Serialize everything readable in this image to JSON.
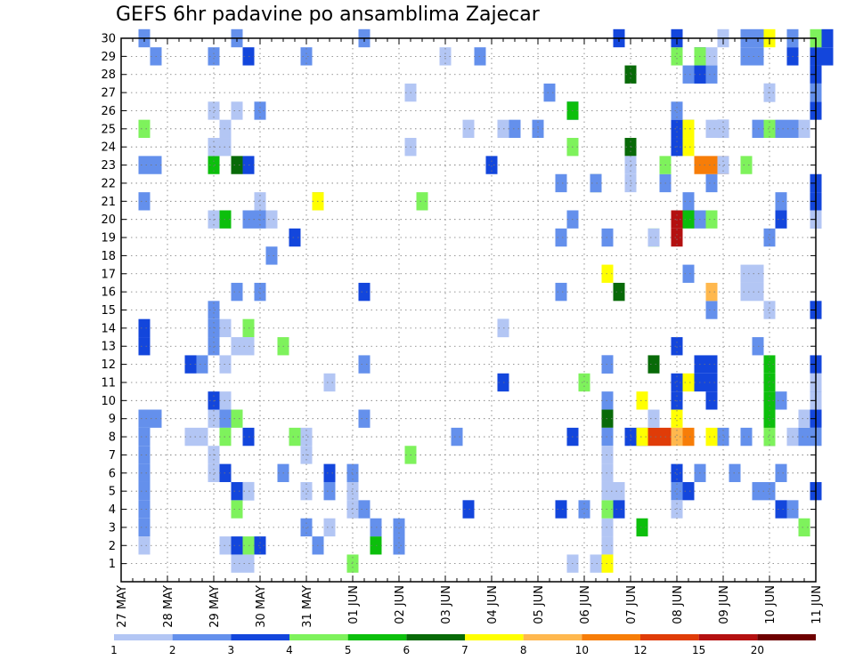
{
  "chart_data": {
    "type": "heatmap",
    "title": "GEFS 6hr padavine po ansamblima Zajecar",
    "xlabel": "",
    "ylabel": "",
    "x_tick_labels": [
      "27 MAY",
      "28 MAY",
      "29 MAY",
      "30 MAY",
      "31 MAY",
      "01 JUN",
      "02 JUN",
      "03 JUN",
      "04 JUN",
      "05 JUN",
      "06 JUN",
      "07 JUN",
      "08 JUN",
      "09 JUN",
      "10 JUN",
      "11 JUN"
    ],
    "y_tick_labels": [
      "1",
      "2",
      "3",
      "4",
      "5",
      "6",
      "7",
      "8",
      "9",
      "10",
      "11",
      "12",
      "13",
      "14",
      "15",
      "16",
      "17",
      "18",
      "19",
      "20",
      "21",
      "22",
      "23",
      "24",
      "25",
      "26",
      "27",
      "28",
      "29",
      "30"
    ],
    "members": 30,
    "steps_per_day": 4,
    "steps": 61,
    "grid": true,
    "legend": {
      "placement": "bottom",
      "labels": [
        "1",
        "2",
        "3",
        "4",
        "5",
        "6",
        "7",
        "8",
        "10",
        "12",
        "15",
        "20"
      ],
      "colors": [
        "#b3c6f4",
        "#6490ec",
        "#1346dc",
        "#7ef25c",
        "#0cbf0c",
        "#086a08",
        "#ffff00",
        "#ffb84e",
        "#f77d08",
        "#e03c08",
        "#b41010",
        "#6e0000"
      ]
    },
    "cells": [
      [
        2,
        30,
        1
      ],
      [
        3,
        29,
        1
      ],
      [
        6,
        12,
        2
      ],
      [
        7,
        12,
        1
      ],
      [
        8,
        29,
        1
      ],
      [
        10,
        30,
        1
      ],
      [
        10,
        4,
        3
      ],
      [
        11,
        29,
        2
      ],
      [
        11,
        8,
        2
      ],
      [
        11,
        5,
        2
      ],
      [
        11,
        14,
        3
      ],
      [
        12,
        26,
        1
      ],
      [
        13,
        18,
        1
      ],
      [
        14,
        6,
        1
      ],
      [
        14,
        13,
        3
      ],
      [
        15,
        19,
        2
      ],
      [
        15,
        8,
        3
      ],
      [
        16,
        3,
        1
      ],
      [
        17,
        2,
        1
      ],
      [
        20,
        1,
        3
      ],
      [
        21,
        9,
        1
      ],
      [
        21,
        4,
        1
      ],
      [
        21,
        12,
        1
      ],
      [
        21,
        16,
        2
      ],
      [
        22,
        2,
        4
      ],
      [
        22,
        3,
        1
      ],
      [
        24,
        2,
        1
      ],
      [
        25,
        7,
        3
      ],
      [
        26,
        21,
        3
      ],
      [
        29,
        8,
        1
      ],
      [
        31,
        29,
        1
      ],
      [
        32,
        23,
        2
      ],
      [
        33,
        11,
        2
      ],
      [
        33,
        14,
        1
      ],
      [
        34,
        25,
        1
      ],
      [
        37,
        27,
        1
      ],
      [
        38,
        16,
        1
      ],
      [
        39,
        26,
        2
      ],
      [
        39,
        8,
        2
      ],
      [
        39,
        24,
        3
      ],
      [
        40,
        4,
        1
      ],
      [
        40,
        11,
        3
      ],
      [
        41,
        22,
        5
      ],
      [
        42,
        12,
        2
      ],
      [
        43,
        30,
        2
      ],
      [
        43,
        16,
        5
      ],
      [
        44,
        28,
        5
      ],
      [
        44,
        24,
        5
      ],
      [
        45,
        3,
        4
      ],
      [
        45,
        10,
        6
      ],
      [
        46,
        19,
        3
      ],
      [
        46,
        12,
        5
      ],
      [
        47,
        22,
        1
      ],
      [
        48,
        10,
        2
      ],
      [
        48,
        13,
        2
      ],
      [
        49,
        21,
        1
      ],
      [
        49,
        17,
        1
      ],
      [
        49,
        25,
        1
      ],
      [
        50,
        29,
        2
      ],
      [
        50,
        28,
        1
      ],
      [
        50,
        6,
        1
      ],
      [
        51,
        15,
        1
      ],
      [
        52,
        25,
        2
      ],
      [
        53,
        6,
        1
      ],
      [
        54,
        23,
        3
      ],
      [
        55,
        25,
        1
      ],
      [
        55,
        13,
        1
      ],
      [
        56,
        27,
        2
      ],
      [
        56,
        19,
        1
      ],
      [
        57,
        6,
        1
      ],
      [
        57,
        20,
        2
      ],
      [
        57,
        21,
        1
      ],
      [
        58,
        30,
        1
      ],
      [
        59,
        3,
        3
      ],
      [
        60,
        20,
        1
      ],
      [
        60,
        10,
        2
      ]
    ],
    "blocks": [
      [
        1,
        15,
        7,
        1
      ],
      [
        1,
        5,
        1,
        1
      ],
      [
        1,
        4,
        1,
        1
      ],
      [
        2,
        1,
        1,
        3
      ],
      [
        2,
        2,
        1,
        1
      ],
      [
        3,
        19,
        1,
        6
      ],
      [
        3,
        20,
        1,
        1
      ],
      [
        3,
        3,
        1,
        1
      ],
      [
        3,
        3,
        1,
        2
      ],
      [
        3,
        1,
        1,
        5
      ],
      [
        3,
        1,
        1,
        6
      ],
      [
        4,
        9,
        1,
        4
      ],
      [
        5,
        7,
        1,
        1
      ],
      [
        6,
        10,
        1,
        3
      ],
      [
        6,
        18,
        1,
        4
      ]
    ]
  }
}
